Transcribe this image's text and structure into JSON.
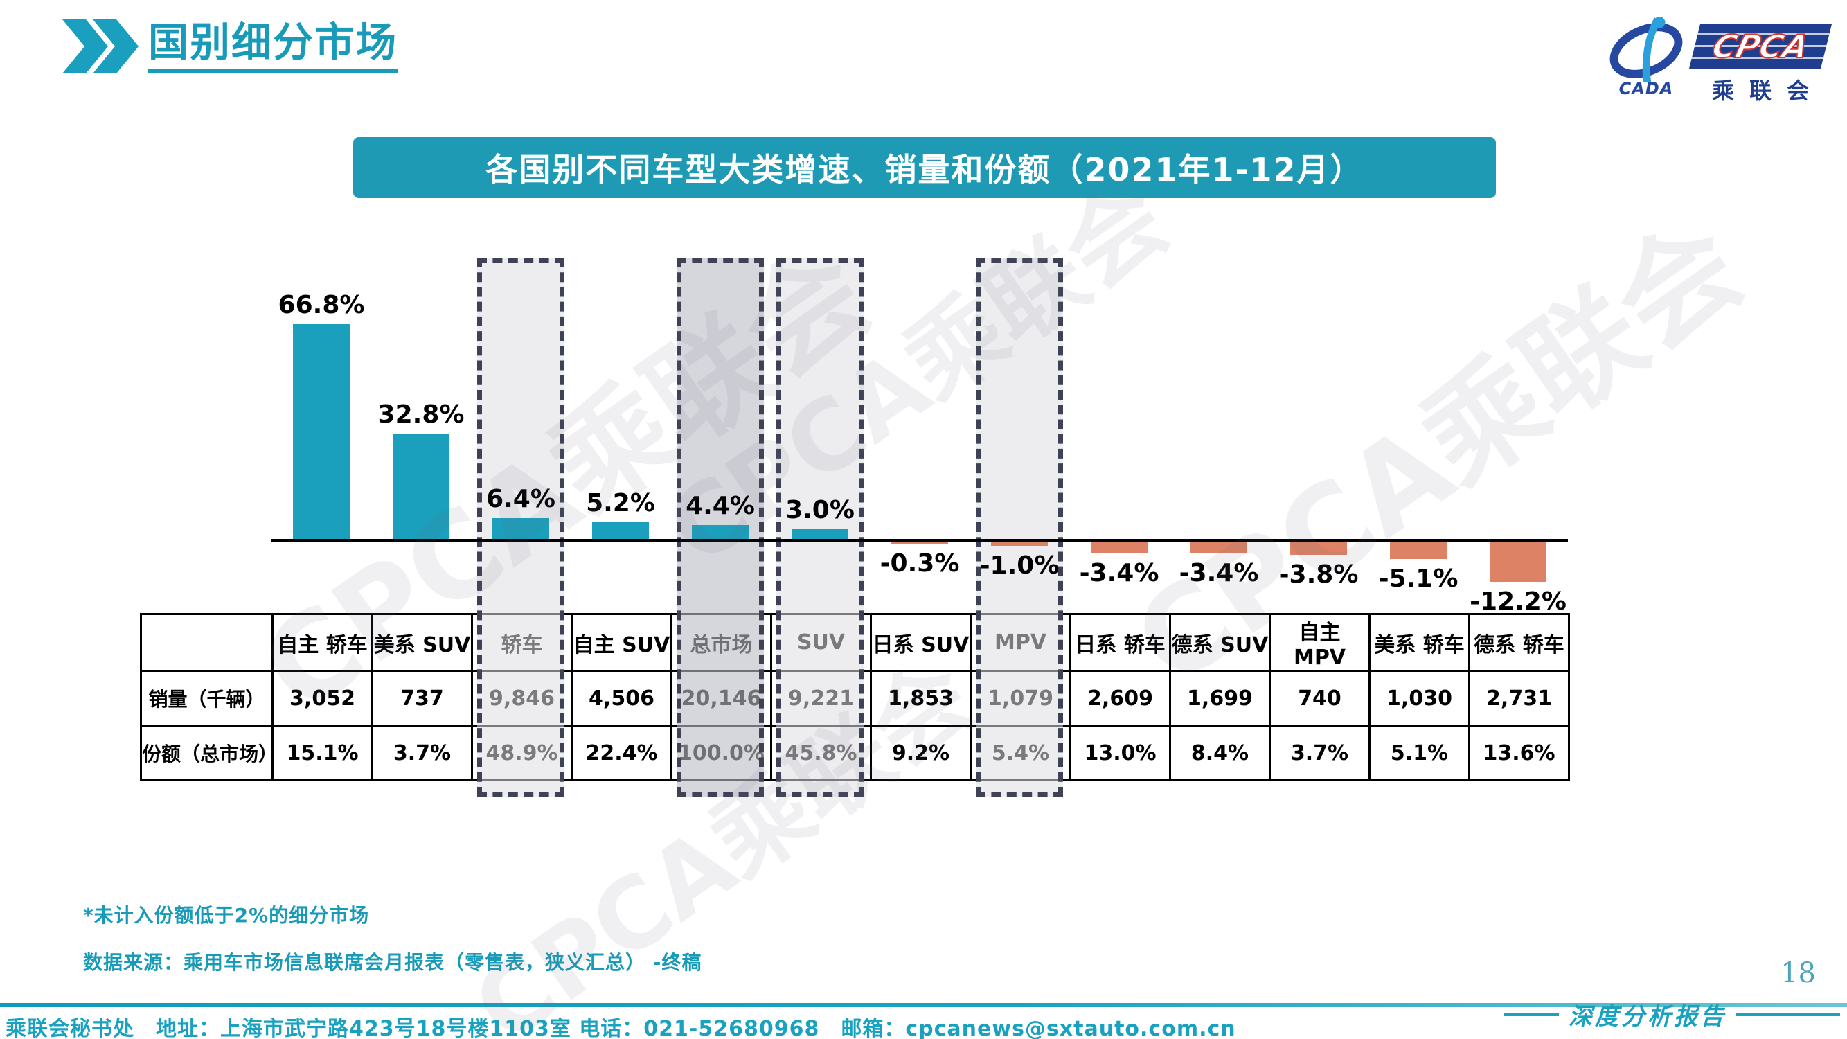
{
  "header": {
    "title": "国别细分市场"
  },
  "logo": {
    "cada_text": "CADA",
    "cpca_text": "CPCA",
    "subtitle": "乘联会"
  },
  "banner": {
    "title": "各国别不同车型大类增速、销量和份额（2021年1-12月）"
  },
  "watermark": {
    "text": "CPCA乘联会"
  },
  "chart_data": {
    "type": "bar",
    "title": "各国别不同车型大类增速、销量和份额（2021年1-12月）",
    "categories": [
      "自主 轿车",
      "美系 SUV",
      "轿车",
      "自主 SUV",
      "总市场",
      "SUV",
      "日系 SUV",
      "MPV",
      "日系 轿车",
      "德系 SUV",
      "自主 MPV",
      "美系 轿车",
      "德系 轿车"
    ],
    "series": [
      {
        "name": "增速",
        "unit": "%",
        "values": [
          66.8,
          32.8,
          6.4,
          5.2,
          4.4,
          3.0,
          -0.3,
          -1.0,
          -3.4,
          -3.4,
          -3.8,
          -5.1,
          -12.2
        ]
      },
      {
        "name": "销量（千辆）",
        "values": [
          "3,052",
          "737",
          "9,846",
          "4,506",
          "20,146",
          "9,221",
          "1,853",
          "1,079",
          "2,609",
          "1,699",
          "740",
          "1,030",
          "2,731"
        ]
      },
      {
        "name": "份额（总市场）",
        "values": [
          "15.1%",
          "3.7%",
          "48.9%",
          "22.4%",
          "100.0%",
          "45.8%",
          "9.2%",
          "5.4%",
          "13.0%",
          "8.4%",
          "3.7%",
          "5.1%",
          "13.6%"
        ]
      }
    ],
    "highlighted_categories": [
      {
        "label": "轿车",
        "shade": "light"
      },
      {
        "label": "总市场",
        "shade": "dark"
      },
      {
        "label": "SUV",
        "shade": "light"
      },
      {
        "label": "MPV",
        "shade": "light"
      }
    ],
    "ylim": [
      -15,
      70
    ],
    "grid": false,
    "legend": "none",
    "colors": {
      "positive": "#1AA0BC",
      "negative": "#DE8266",
      "accent": "#189BB8"
    }
  },
  "table": {
    "row_labels": [
      "销量（千辆）",
      "份额（总市场）"
    ]
  },
  "notes": {
    "share_threshold": "*未计入份额低于2%的细分市场",
    "data_source": "数据来源：乘用车市场信息联席会月报表（零售表，狭义汇总） -终稿"
  },
  "footer": {
    "contact": "乘联会秘书处　地址：上海市武宁路423号18号楼1103室 电话：021-52680968　邮箱：cpcanews@sxtauto.com.cn",
    "page_number": "18",
    "report_type": "深度分析报告"
  }
}
